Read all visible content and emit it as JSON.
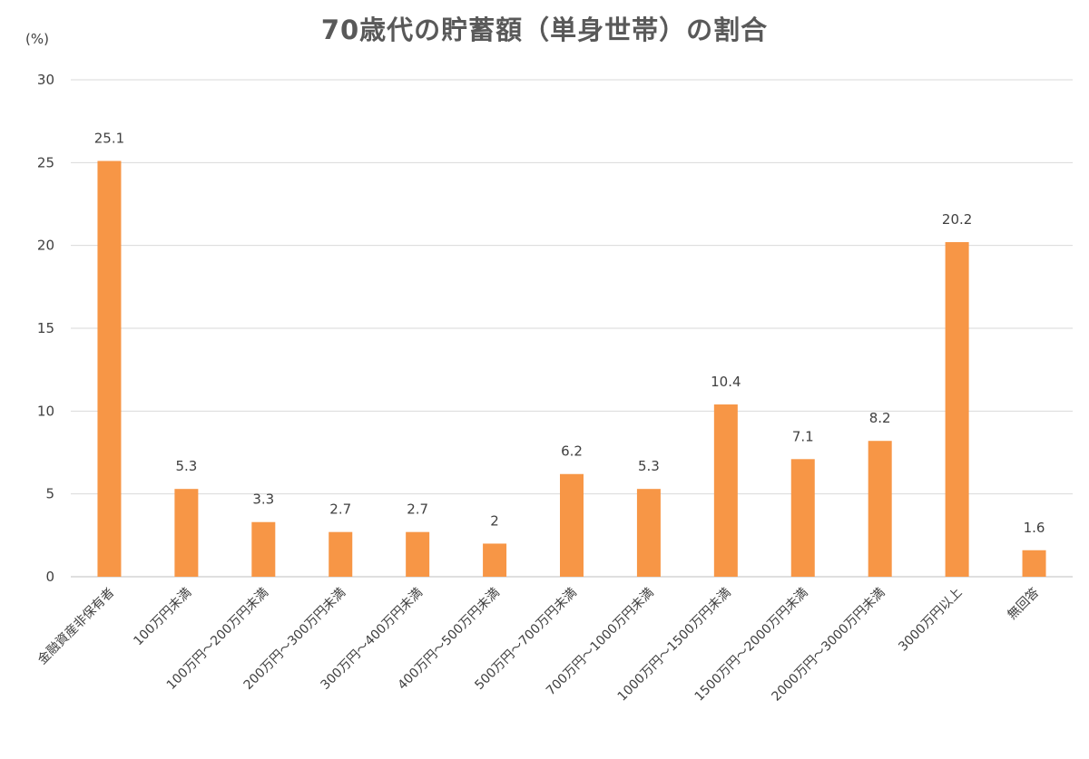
{
  "chart_data": {
    "type": "bar",
    "title": "70歳代の貯蓄額（単身世帯）の割合",
    "ylabel": "(%)",
    "xlabel": "",
    "ylim": [
      0,
      30
    ],
    "yticks": [
      0,
      5,
      10,
      15,
      20,
      25,
      30
    ],
    "grid": true,
    "legend": "none",
    "bar_color": "#F79646",
    "categories": [
      "金融資産非保有者",
      "100万円未満",
      "100万円～200万円未満",
      "200万円～300万円未満",
      "300万円～400万円未満",
      "400万円～500万円未満",
      "500万円～700万円未満",
      "700万円～1000万円未満",
      "1000万円～1500万円未満",
      "1500万円～2000万円未満",
      "2000万円～3000万円未満",
      "3000万円以上",
      "無回答"
    ],
    "values": [
      25.1,
      5.3,
      3.3,
      2.7,
      2.7,
      2,
      6.2,
      5.3,
      10.4,
      7.1,
      8.2,
      20.2,
      1.6
    ],
    "data_labels": [
      "25.1",
      "5.3",
      "3.3",
      "2.7",
      "2.7",
      "2",
      "6.2",
      "5.3",
      "10.4",
      "7.1",
      "8.2",
      "20.2",
      "1.6"
    ]
  }
}
